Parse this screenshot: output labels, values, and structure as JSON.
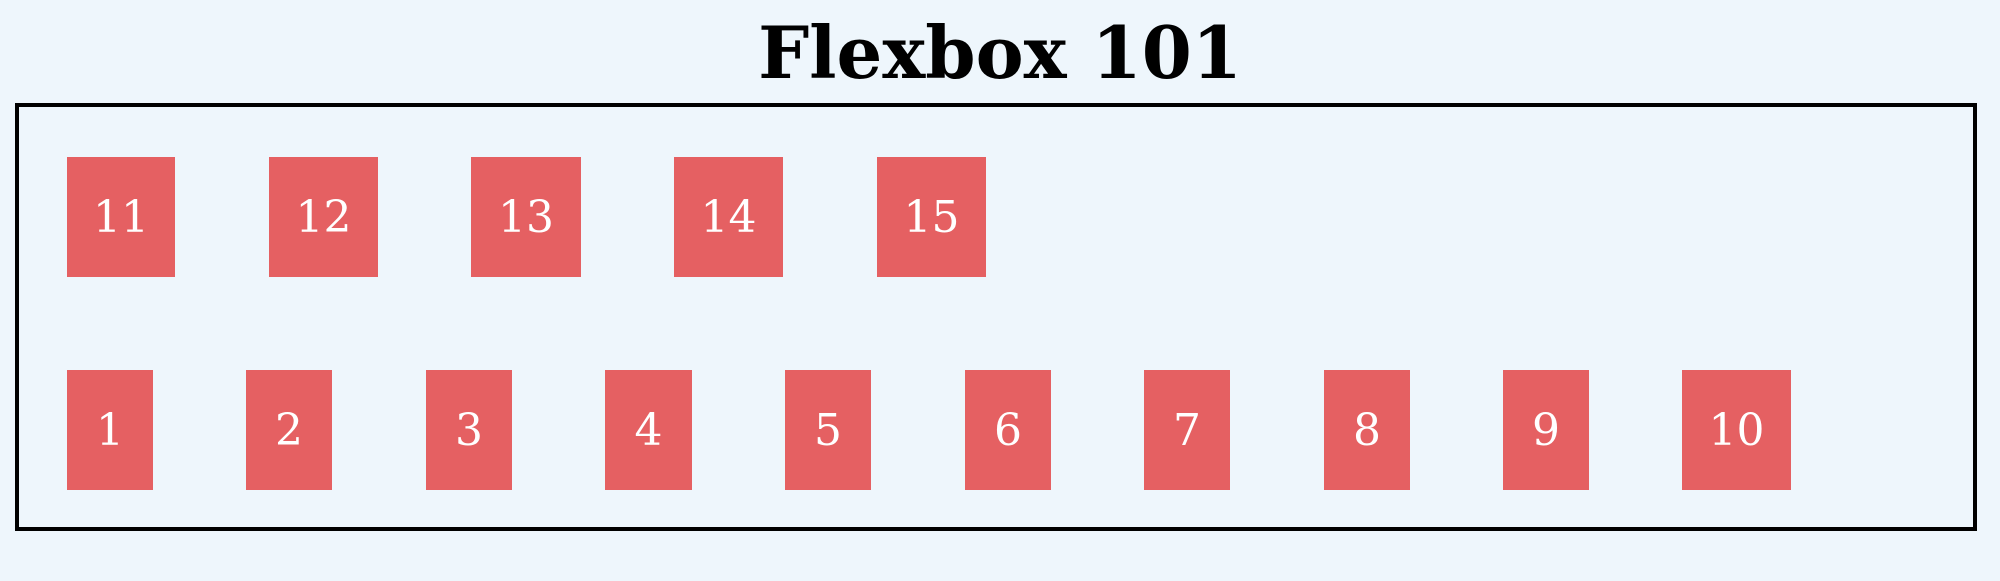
{
  "page": {
    "title": "Flexbox 101",
    "background": "#eef6fc"
  },
  "colors": {
    "box_fill": "#e56062",
    "box_text": "#ffffff",
    "border": "#000000"
  },
  "rows": {
    "top": [
      "11",
      "12",
      "13",
      "14",
      "15"
    ],
    "bottom": [
      "1",
      "2",
      "3",
      "4",
      "5",
      "6",
      "7",
      "8",
      "9",
      "10"
    ]
  }
}
